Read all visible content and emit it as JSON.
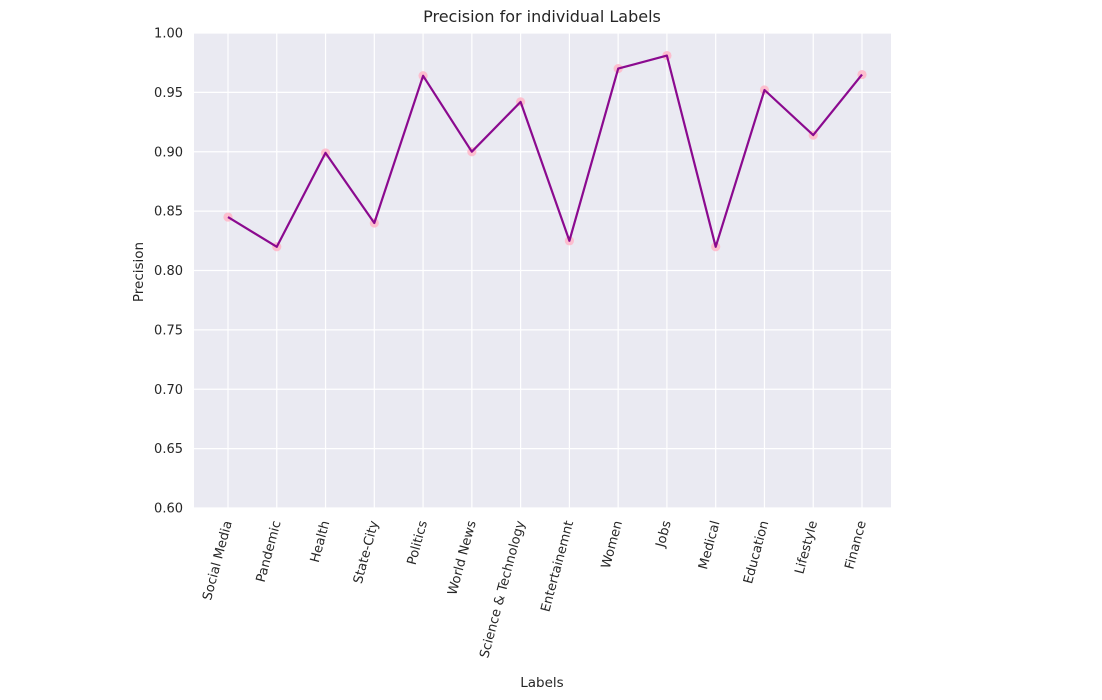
{
  "chart_data": {
    "type": "line",
    "title": "Precision for individual Labels",
    "xlabel": "Labels",
    "ylabel": "Precision",
    "categories": [
      "Social Media",
      "Pandemic",
      "Health",
      "State-City",
      "Politics",
      "World News",
      "Science & Technology",
      "Entertainemnt",
      "Women",
      "Jobs",
      "Medical",
      "Education",
      "Lifestyle",
      "Finance"
    ],
    "series": [
      {
        "values": [
          0.845,
          0.82,
          0.899,
          0.84,
          0.964,
          0.9,
          0.942,
          0.825,
          0.97,
          0.981,
          0.82,
          0.952,
          0.914,
          0.965
        ]
      }
    ],
    "ylim": [
      0.6,
      1.0
    ],
    "yticks": [
      "0.60",
      "0.65",
      "0.70",
      "0.75",
      "0.80",
      "0.85",
      "0.90",
      "0.95",
      "1.00"
    ],
    "grid": true,
    "line_color": "#8b0a8f",
    "marker_color": "#ffb6c8",
    "background_color": "#eaeaf2",
    "grid_color": "#ffffff"
  }
}
